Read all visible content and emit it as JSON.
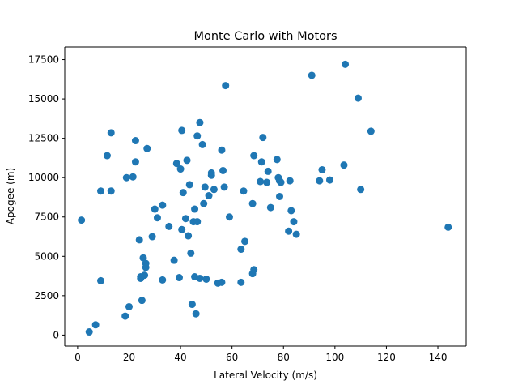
{
  "chart_data": {
    "type": "scatter",
    "title": "Monte Carlo with Motors",
    "xlabel": "Lateral Velocity (m/s)",
    "ylabel": "Apogee (m)",
    "xlim": [
      -5,
      151
    ],
    "ylim": [
      -700,
      18300
    ],
    "xticks": [
      0,
      20,
      40,
      60,
      80,
      100,
      120,
      140
    ],
    "yticks": [
      0,
      2500,
      5000,
      7500,
      10000,
      12500,
      15000,
      17500
    ],
    "xtick_labels": [
      "0",
      "20",
      "40",
      "60",
      "80",
      "100",
      "120",
      "140"
    ],
    "ytick_labels": [
      "0",
      "2500",
      "5000",
      "7500",
      "10000",
      "12500",
      "15000",
      "17500"
    ],
    "grid": false,
    "color": "#1f77b4",
    "points": [
      [
        1.5,
        7300
      ],
      [
        4.5,
        200
      ],
      [
        7,
        650
      ],
      [
        9,
        3450
      ],
      [
        9,
        9150
      ],
      [
        11.5,
        11400
      ],
      [
        13,
        12850
      ],
      [
        13,
        9150
      ],
      [
        18.5,
        1200
      ],
      [
        19,
        10000
      ],
      [
        20,
        1800
      ],
      [
        21.5,
        10050
      ],
      [
        22.5,
        12350
      ],
      [
        22.5,
        11000
      ],
      [
        24,
        6050
      ],
      [
        24.5,
        3700
      ],
      [
        24.5,
        3600
      ],
      [
        25,
        2200
      ],
      [
        25.5,
        4900
      ],
      [
        26,
        3800
      ],
      [
        26.5,
        4550
      ],
      [
        26.5,
        4300
      ],
      [
        27,
        11850
      ],
      [
        29,
        6250
      ],
      [
        30,
        8000
      ],
      [
        31,
        7450
      ],
      [
        33,
        8250
      ],
      [
        33,
        3500
      ],
      [
        35.5,
        6900
      ],
      [
        37.5,
        4750
      ],
      [
        38.5,
        10900
      ],
      [
        39.5,
        3650
      ],
      [
        40,
        10550
      ],
      [
        40.5,
        13000
      ],
      [
        40.5,
        6700
      ],
      [
        41,
        9050
      ],
      [
        42,
        7400
      ],
      [
        42.5,
        11100
      ],
      [
        43,
        6300
      ],
      [
        43.5,
        9550
      ],
      [
        44,
        5200
      ],
      [
        44.5,
        1950
      ],
      [
        45,
        7200
      ],
      [
        45.5,
        3700
      ],
      [
        45.5,
        8000
      ],
      [
        46,
        1350
      ],
      [
        46.5,
        12650
      ],
      [
        46.5,
        7200
      ],
      [
        47.5,
        13500
      ],
      [
        47.5,
        3600
      ],
      [
        48.5,
        12100
      ],
      [
        49,
        8350
      ],
      [
        49.5,
        9400
      ],
      [
        50,
        3550
      ],
      [
        51,
        8850
      ],
      [
        52,
        10300
      ],
      [
        52,
        10150
      ],
      [
        53,
        9250
      ],
      [
        54.5,
        3300
      ],
      [
        56,
        3350
      ],
      [
        56,
        11750
      ],
      [
        56.5,
        10450
      ],
      [
        57,
        9400
      ],
      [
        57.5,
        15850
      ],
      [
        59,
        7500
      ],
      [
        63.5,
        5450
      ],
      [
        63.5,
        3350
      ],
      [
        64.5,
        9150
      ],
      [
        65,
        5950
      ],
      [
        68,
        3900
      ],
      [
        68,
        8350
      ],
      [
        68.5,
        4150
      ],
      [
        68.5,
        11400
      ],
      [
        71,
        9750
      ],
      [
        71.5,
        11000
      ],
      [
        72,
        12550
      ],
      [
        73.5,
        9700
      ],
      [
        74,
        10400
      ],
      [
        75,
        8100
      ],
      [
        77.5,
        11150
      ],
      [
        78,
        10000
      ],
      [
        78.5,
        8800
      ],
      [
        78.5,
        9800
      ],
      [
        79,
        9700
      ],
      [
        82,
        6600
      ],
      [
        82.5,
        9800
      ],
      [
        83,
        7900
      ],
      [
        84,
        7200
      ],
      [
        85,
        6400
      ],
      [
        91,
        16500
      ],
      [
        94,
        9800
      ],
      [
        95,
        10500
      ],
      [
        98,
        9850
      ],
      [
        103.5,
        10800
      ],
      [
        104,
        17200
      ],
      [
        109,
        15050
      ],
      [
        110,
        9250
      ],
      [
        114,
        12950
      ],
      [
        144,
        6850
      ]
    ]
  }
}
